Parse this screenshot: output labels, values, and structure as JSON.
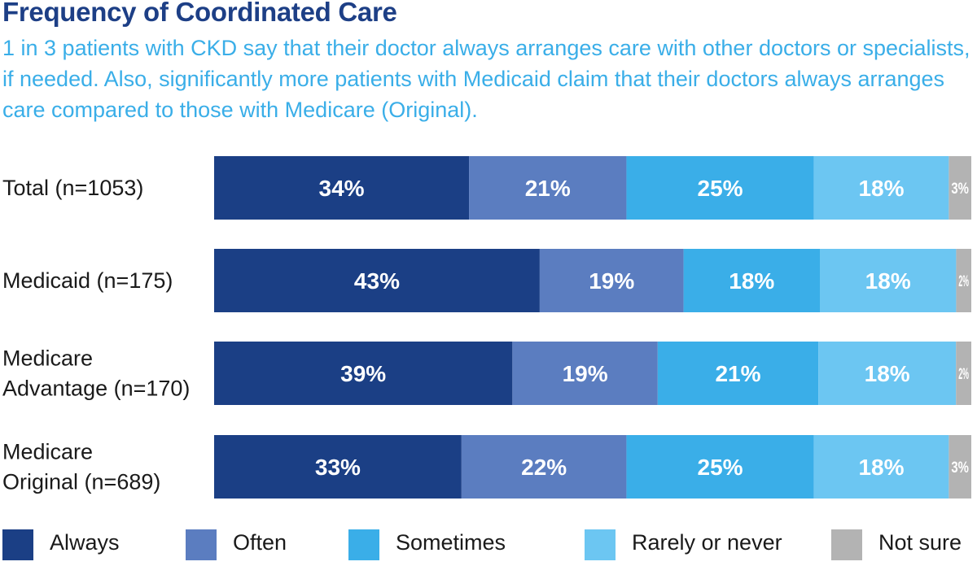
{
  "title": "Frequency of Coordinated Care",
  "subtitle": "1 in 3 patients with CKD say that their doctor always arranges care with other doctors or specialists, if needed. Also, significantly more patients with Medicaid claim that their doctors always arranges care compared to those with Medicare (Original).",
  "chart_data": {
    "type": "bar",
    "orientation": "horizontal",
    "stacked": true,
    "categories": [
      [
        "Total (n=1053)"
      ],
      [
        "Medicaid (n=175)"
      ],
      [
        "Medicare",
        "Advantage (n=170)"
      ],
      [
        "Medicare",
        "Original (n=689)"
      ]
    ],
    "series": [
      {
        "name": "Always",
        "color": "#1b3f85",
        "values": [
          34,
          43,
          39,
          33
        ],
        "labels": [
          "34%",
          "43%",
          "39%",
          "33%"
        ]
      },
      {
        "name": "Often",
        "color": "#5b7dc0",
        "values": [
          21,
          19,
          19,
          22
        ],
        "labels": [
          "21%",
          "19%",
          "19%",
          "22%"
        ]
      },
      {
        "name": "Sometimes",
        "color": "#3aaee8",
        "values": [
          25,
          18,
          21,
          25
        ],
        "labels": [
          "25%",
          "18%",
          "21%",
          "25%"
        ]
      },
      {
        "name": "Rarely or never",
        "color": "#6cc6f2",
        "values": [
          18,
          18,
          18,
          18
        ],
        "labels": [
          "18%",
          "18%",
          "18%",
          "18%"
        ]
      },
      {
        "name": "Not sure",
        "color": "#b3b3b3",
        "values": [
          3,
          2,
          2,
          3
        ],
        "labels": [
          "3%",
          "2%",
          "2%",
          "3%"
        ]
      }
    ],
    "xlim": [
      0,
      100
    ],
    "grid": false,
    "legend_position": "bottom"
  }
}
